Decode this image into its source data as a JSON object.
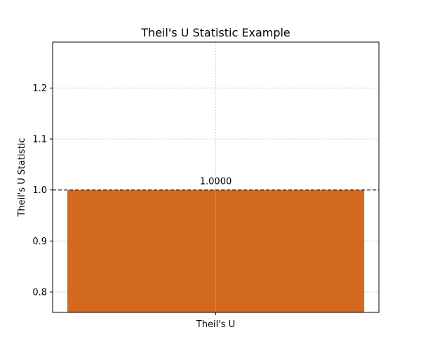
{
  "chart_data": {
    "type": "bar",
    "title": "Theil's U Statistic Example",
    "xlabel": "",
    "ylabel": "Theil's U Statistic",
    "categories": [
      "Theil's U"
    ],
    "values": [
      1.0
    ],
    "data_labels": [
      "1.0000"
    ],
    "ylim": [
      0.76,
      1.29
    ],
    "yticks": [
      0.8,
      0.9,
      1.0,
      1.1,
      1.2
    ],
    "ytick_labels": [
      "0.8",
      "0.9",
      "1.0",
      "1.1",
      "1.2"
    ],
    "reference_line": {
      "y": 1.0,
      "style": "dashed",
      "color": "#000000"
    },
    "grid": true,
    "bar_color": "#d2691e"
  }
}
